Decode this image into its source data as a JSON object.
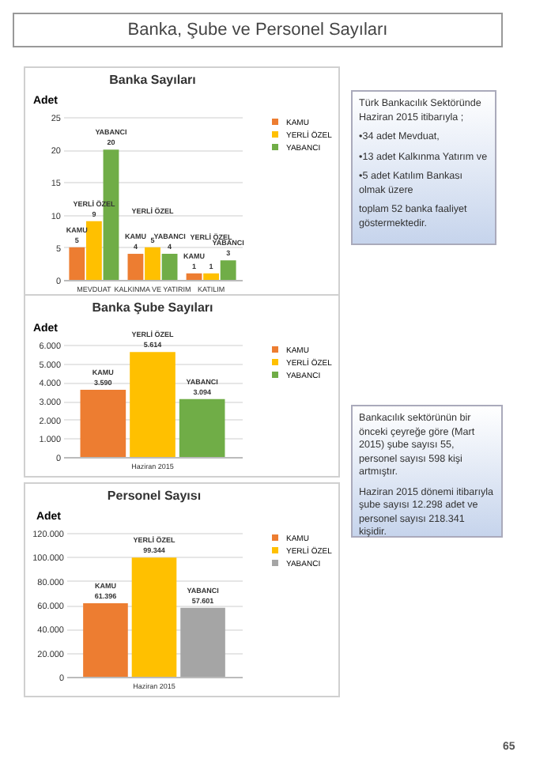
{
  "chart_data": [
    {
      "type": "other",
      "title": "Banka, Şube ve Personel Sayıları"
    },
    {
      "type": "bar",
      "title": "Banka Sayıları",
      "ylabel": "Adet",
      "categories": [
        "MEVDUAT",
        "KALKINMA VE YATIRIM",
        "KATILIM"
      ],
      "series": [
        {
          "name": "KAMU",
          "color": "#ed7d31",
          "values": [
            5,
            4,
            1
          ],
          "value_labels": [
            "5",
            "4",
            "1"
          ]
        },
        {
          "name": "YERLİ ÖZEL",
          "color": "#ffc000",
          "values": [
            9,
            5,
            1
          ],
          "value_labels": [
            "9",
            "5",
            "1"
          ]
        },
        {
          "name": "YABANCI",
          "color": "#70ad47",
          "values": [
            20,
            4,
            3
          ],
          "value_labels": [
            "20",
            "4",
            "3"
          ]
        }
      ],
      "ylim": [
        0,
        25
      ],
      "yticks": [
        0,
        5,
        10,
        15,
        20,
        25
      ],
      "grid": "y",
      "legend": "right"
    },
    {
      "type": "other",
      "annotations": [
        "Türk Bankacılık Sektöründe Haziran 2015 itibarıyla ;",
        "•34 adet Mevduat,",
        "•13 adet Kalkınma Yatırım ve",
        "•5 adet Katılım Bankası olmak üzere",
        "toplam 52 banka faaliyet göstermektedir."
      ]
    },
    {
      "type": "bar",
      "title": "Banka Şube Sayıları",
      "ylabel": "Adet",
      "categories": [
        "Haziran 2015"
      ],
      "series": [
        {
          "name": "KAMU",
          "color": "#ed7d31",
          "values": [
            3590
          ],
          "value_labels": [
            "3.590"
          ]
        },
        {
          "name": "YERLİ ÖZEL",
          "color": "#ffc000",
          "values": [
            5614
          ],
          "value_labels": [
            "5.614"
          ]
        },
        {
          "name": "YABANCI",
          "color": "#70ad47",
          "values": [
            3094
          ],
          "value_labels": [
            "3.094"
          ]
        }
      ],
      "ylim": [
        0,
        6000
      ],
      "yticks": [
        0,
        {
          "value": 1000,
          "label": "1.000"
        },
        {
          "value": 2000,
          "label": "2.000"
        },
        {
          "value": 3000,
          "label": "3.000"
        },
        {
          "value": 4000,
          "label": "4.000"
        },
        {
          "value": 5000,
          "label": "5.000"
        },
        {
          "value": 6000,
          "label": "6.000"
        }
      ],
      "grid": "y",
      "legend": "right"
    },
    {
      "type": "bar",
      "title": "Personel Sayısı",
      "ylabel": "Adet",
      "categories": [
        "Haziran 2015"
      ],
      "series": [
        {
          "name": "KAMU",
          "color": "#ed7d31",
          "values": [
            61396
          ],
          "value_labels": [
            "61.396"
          ]
        },
        {
          "name": "YERLİ ÖZEL",
          "color": "#ffc000",
          "values": [
            99344
          ],
          "value_labels": [
            "99.344"
          ]
        },
        {
          "name": "YABANCI",
          "color": "#a5a5a5",
          "values": [
            57601
          ],
          "value_labels": [
            "57.601"
          ]
        }
      ],
      "ylim": [
        0,
        120000
      ],
      "yticks": [
        0,
        {
          "value": 20000,
          "label": "20.000"
        },
        {
          "value": 40000,
          "label": "40.000"
        },
        {
          "value": 60000,
          "label": "60.000"
        },
        {
          "value": 80000,
          "label": "80.000"
        },
        {
          "value": 100000,
          "label": "100.000"
        },
        {
          "value": 120000,
          "label": "120.000"
        }
      ],
      "grid": "y",
      "legend": "right"
    },
    {
      "type": "other",
      "annotations": [
        "Bankacılık sektörünün bir önceki çeyreğe göre (Mart 2015) şube sayısı 55, personel sayısı 598 kişi artmıştır.",
        "Haziran 2015 dönemi itibarıyla şube sayısı  12.298 adet ve personel sayısı 218.341 kişidir."
      ]
    },
    {
      "type": "other",
      "annotations": [
        "65"
      ]
    }
  ]
}
